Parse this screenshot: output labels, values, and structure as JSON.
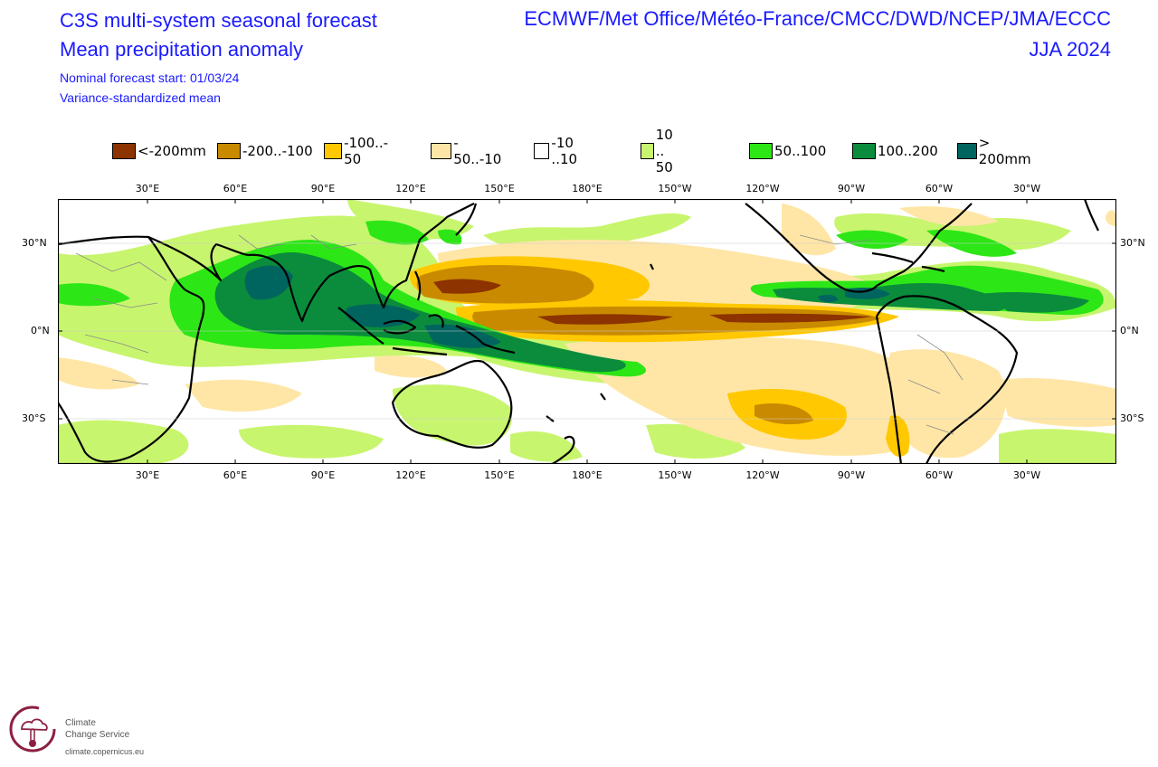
{
  "header": {
    "title_line1": "C3S multi-system seasonal forecast",
    "title_line2": "Mean precipitation anomaly",
    "subtitle_line1": "Nominal forecast start: 01/03/24",
    "subtitle_line2": "Variance-standardized mean",
    "systems": "ECMWF/Met Office/Météo-France/CMCC/DWD/NCEP/JMA/ECCC",
    "season": "JJA 2024"
  },
  "legend": [
    {
      "label": "<-200mm",
      "color": "#8c3300"
    },
    {
      "label": "-200..-100",
      "color": "#c98a00"
    },
    {
      "label": "-100..- 50",
      "color": "#ffc800"
    },
    {
      "label": "- 50..-10",
      "color": "#ffe6a6"
    },
    {
      "label": "-10 ..10",
      "color": "#ffffff"
    },
    {
      "label": "10 .. 50",
      "color": "#c8f56e"
    },
    {
      "label": "50..100",
      "color": "#2de616"
    },
    {
      "label": "100..200",
      "color": "#0a8c3c"
    },
    {
      "label": "> 200mm",
      "color": "#00645f"
    }
  ],
  "axes": {
    "lon_labels": [
      "30°E",
      "60°E",
      "90°E",
      "120°E",
      "150°E",
      "180°E",
      "150°W",
      "120°W",
      "90°W",
      "60°W",
      "30°W"
    ],
    "lat_labels": [
      "30°N",
      "0°N",
      "30°S"
    ]
  },
  "logo": {
    "line1": "Climate",
    "line2": "Change Service",
    "url": "climate.copernicus.eu"
  }
}
